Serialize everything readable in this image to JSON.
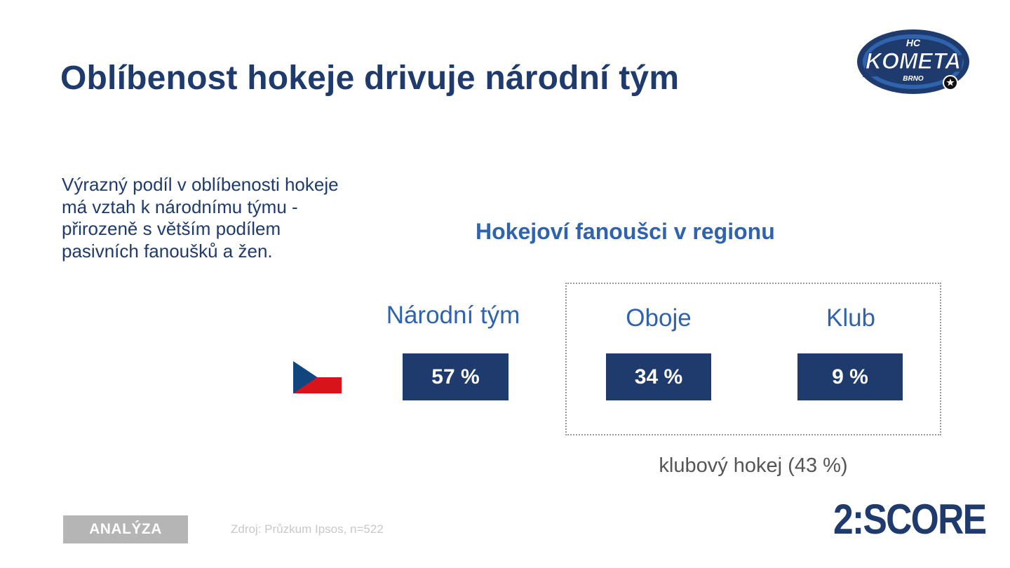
{
  "slide": {
    "title": "Oblíbenost hokeje drivuje národní tým",
    "intro_text": "Výrazný podíl v oblíbenosti hokeje má vztah k národnímu týmu - přirozeně s větším podílem pasivních fanoušků a žen.",
    "chart_title": "Hokejoví fanoušci v regionu",
    "footnote_group_label": "klubový hokej (43 %)",
    "badge_label": "ANALÝZA",
    "source": "Zdroj: Průzkum Ipsos, n=522",
    "brand": "2:SCORE"
  },
  "logo": {
    "top_text": "HC",
    "main_text": "KOMETA",
    "bottom_text": "BRNO"
  },
  "flag": {
    "name": "czech-flag",
    "colors": [
      "#ffffff",
      "#d7141a",
      "#11457e"
    ]
  },
  "colors": {
    "primary": "#1f3b6e",
    "accent": "#2f63ad",
    "muted": "#b5b5b5"
  },
  "chart_data": {
    "type": "table",
    "title": "Hokejoví fanoušci v regionu",
    "categories": [
      "Národní tým",
      "Oboje",
      "Klub"
    ],
    "values": [
      57,
      34,
      9
    ],
    "value_labels": [
      "57 %",
      "34 %",
      "9 %"
    ],
    "group_note": "klubový hokej (43 %)"
  }
}
